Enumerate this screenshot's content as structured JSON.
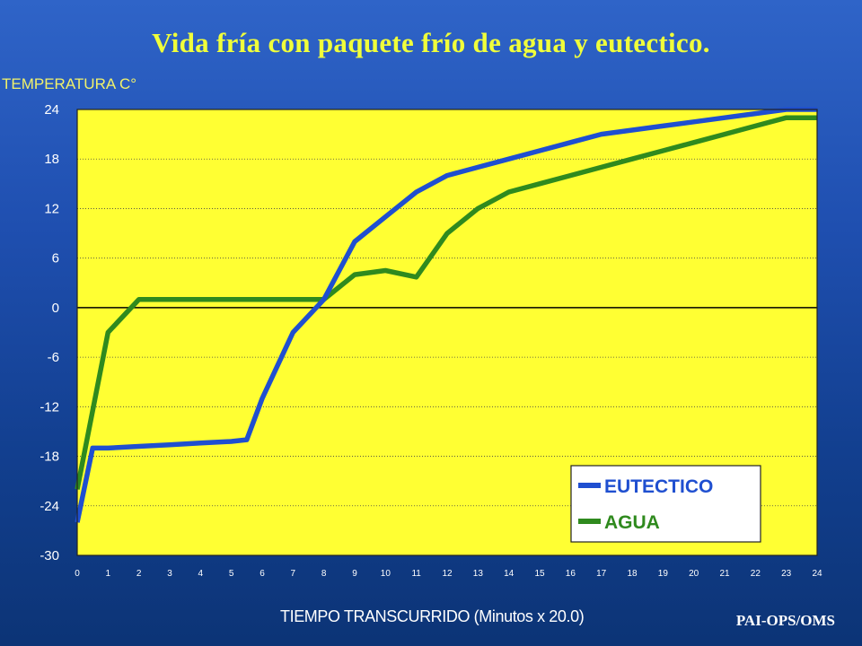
{
  "credit": "PAI-OPS/OMS",
  "colors": {
    "plot_bg": "#ffff33",
    "eutectico": "#1f4fd0",
    "agua": "#2f8a1e",
    "title": "#f0ff3a"
  },
  "chart_data": {
    "type": "line",
    "title": "Vida fría con paquete frío de agua y eutectico.",
    "xlabel": "TIEMPO TRANSCURRIDO (Minutos x 20.0)",
    "ylabel": "TEMPERATURA C°",
    "xlim": [
      0,
      24
    ],
    "ylim": [
      -30,
      24
    ],
    "xticks": [
      0,
      1,
      2,
      3,
      4,
      5,
      6,
      7,
      8,
      9,
      10,
      11,
      12,
      13,
      14,
      15,
      16,
      17,
      18,
      19,
      20,
      21,
      22,
      23,
      24
    ],
    "yticks": [
      24,
      18,
      12,
      6,
      0,
      -6,
      -12,
      -18,
      -24,
      -30
    ],
    "grid": "horizontal dotted",
    "legend_position": "bottom-right",
    "series": [
      {
        "name": "EUTECTICO",
        "x": [
          0,
          0.5,
          1,
          2,
          3,
          4,
          5,
          5.5,
          6,
          7,
          8,
          9,
          10,
          11,
          12,
          13,
          14,
          15,
          16,
          17,
          18,
          19,
          20,
          21,
          22,
          23,
          24
        ],
        "y": [
          -26,
          -17,
          -17,
          -16.8,
          -16.6,
          -16.4,
          -16.2,
          -16,
          -11,
          -3,
          1,
          8,
          11,
          14,
          16,
          17,
          18,
          19,
          20,
          21,
          21.5,
          22,
          22.5,
          23,
          23.5,
          24,
          24
        ]
      },
      {
        "name": "AGUA",
        "x": [
          0,
          1,
          2,
          3,
          4,
          5,
          6,
          7,
          8,
          9,
          10,
          11,
          12,
          13,
          14,
          15,
          16,
          17,
          18,
          19,
          20,
          21,
          22,
          23,
          24
        ],
        "y": [
          -22,
          -3,
          1,
          1,
          1,
          1,
          1,
          1,
          1,
          4,
          4.5,
          3.7,
          9,
          12,
          14,
          15,
          16,
          17,
          18,
          19,
          20,
          21,
          22,
          23,
          23
        ]
      }
    ]
  }
}
